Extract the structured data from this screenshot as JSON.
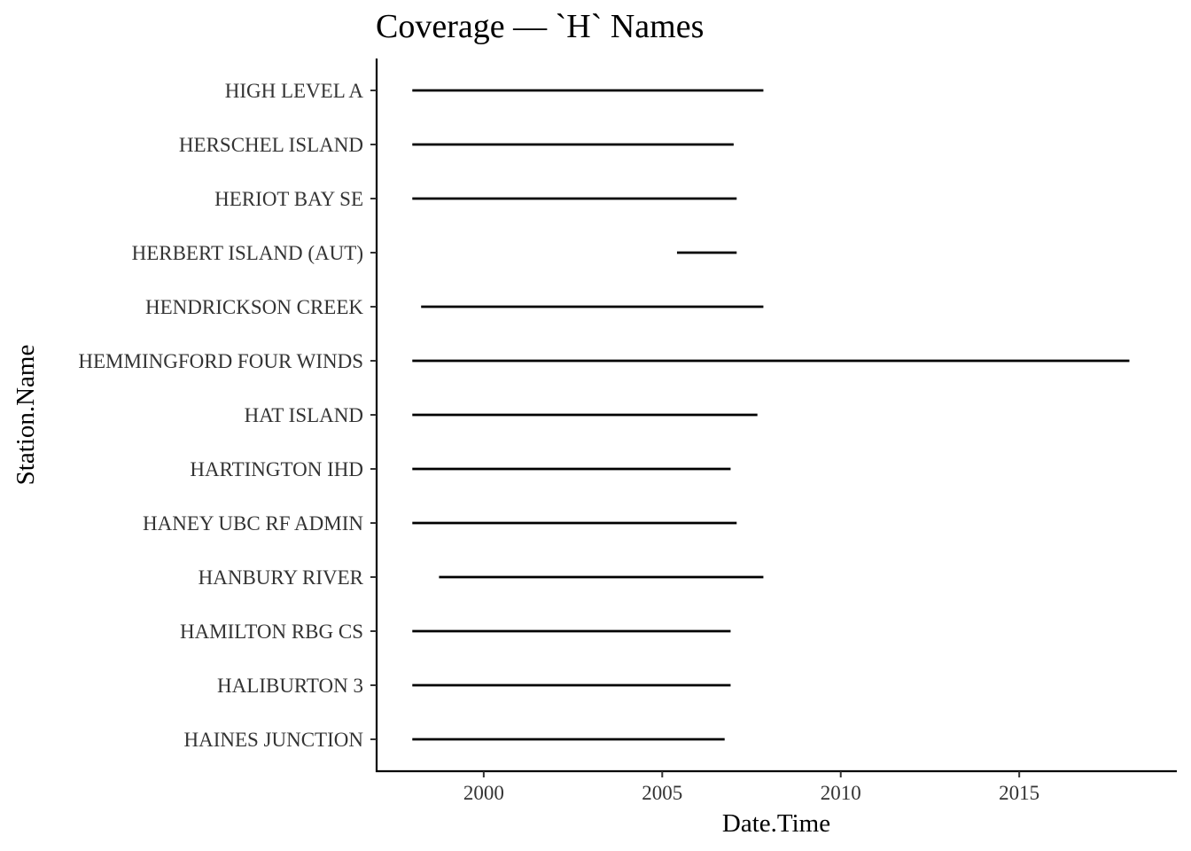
{
  "chart_data": {
    "type": "segment",
    "title": "Coverage — `H` Names",
    "xlabel": "Date.Time",
    "ylabel": "Station.Name",
    "x_scale": "date",
    "xlim": [
      "1997-01-01",
      "2019-06-01"
    ],
    "x_ticks": [
      {
        "label": "2000",
        "value": "2000-01-01"
      },
      {
        "label": "2005",
        "value": "2005-01-01"
      },
      {
        "label": "2010",
        "value": "2010-01-01"
      },
      {
        "label": "2015",
        "value": "2015-01-01"
      }
    ],
    "grid": false,
    "legend": "none",
    "color": "#000000",
    "stations": [
      {
        "name": "HIGH LEVEL A",
        "start": "1998-01-01",
        "end": "2007-11-01"
      },
      {
        "name": "HERSCHEL ISLAND",
        "start": "1998-01-01",
        "end": "2007-01-01"
      },
      {
        "name": "HERIOT BAY SE",
        "start": "1998-01-01",
        "end": "2007-02-01"
      },
      {
        "name": "HERBERT ISLAND (AUT)",
        "start": "2005-06-01",
        "end": "2007-02-01"
      },
      {
        "name": "HENDRICKSON CREEK",
        "start": "1998-04-01",
        "end": "2007-11-01"
      },
      {
        "name": "HEMMINGFORD FOUR WINDS",
        "start": "1998-01-01",
        "end": "2018-02-01"
      },
      {
        "name": "HAT ISLAND",
        "start": "1998-01-01",
        "end": "2007-09-01"
      },
      {
        "name": "HARTINGTON IHD",
        "start": "1998-01-01",
        "end": "2006-12-01"
      },
      {
        "name": "HANEY UBC RF ADMIN",
        "start": "1998-01-01",
        "end": "2007-02-01"
      },
      {
        "name": "HANBURY RIVER",
        "start": "1998-10-01",
        "end": "2007-11-01"
      },
      {
        "name": "HAMILTON RBG CS",
        "start": "1998-01-01",
        "end": "2006-12-01"
      },
      {
        "name": "HALIBURTON 3",
        "start": "1998-01-01",
        "end": "2006-12-01"
      },
      {
        "name": "HAINES JUNCTION",
        "start": "1998-01-01",
        "end": "2006-10-01"
      }
    ]
  }
}
